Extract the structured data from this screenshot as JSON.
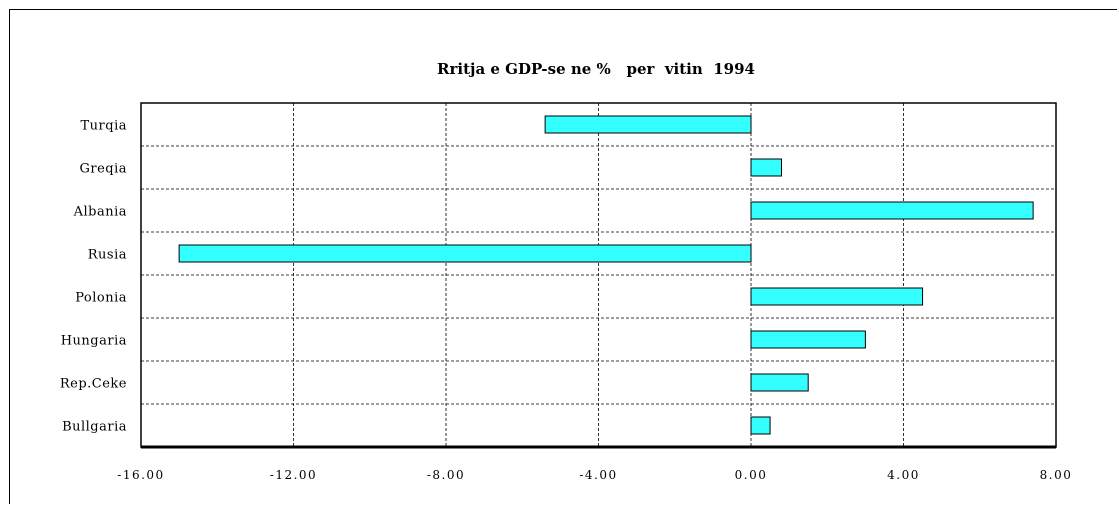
{
  "chart_data": {
    "type": "bar",
    "orientation": "horizontal",
    "title": "Rritja e GDP-se ne %   per  vitin  1994",
    "xlabel": "",
    "ylabel": "",
    "categories": [
      "Turqia",
      "Greqia",
      "Albania",
      "Rusia",
      "Polonia",
      "Hungaria",
      "Rep.Ceke",
      "Bullgaria"
    ],
    "values": [
      -5.4,
      0.8,
      7.4,
      -15.0,
      4.5,
      3.0,
      1.5,
      0.5
    ],
    "xlim": [
      -16.0,
      8.0
    ],
    "ticks": [
      -16,
      -12,
      -8,
      -4,
      0,
      4,
      8
    ],
    "tick_labels": [
      "-16.00",
      "-12.00",
      "-8.00",
      "-4.00",
      "0.00",
      "4.00",
      "8.00"
    ],
    "grid": true,
    "bar_color": "#33ffff",
    "bar_edge_color": "#000000"
  }
}
